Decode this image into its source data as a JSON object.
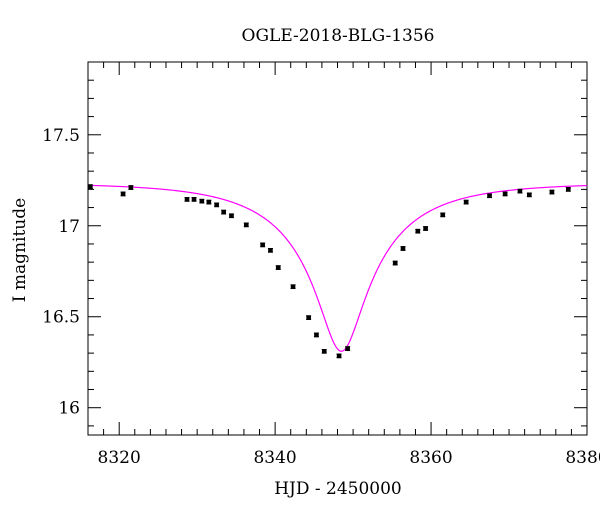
{
  "chart_data": {
    "type": "scatter",
    "title": "OGLE-2018-BLG-1356",
    "xlabel": "HJD - 2450000",
    "ylabel": "I magnitude",
    "xlim": [
      8316,
      8380
    ],
    "ylim": [
      17.9,
      15.85
    ],
    "y_inverted": true,
    "x_ticks": [
      8320,
      8340,
      8360,
      8380
    ],
    "x_tick_labels": [
      "8320",
      "8340",
      "8360",
      "8380"
    ],
    "y_ticks": [
      16,
      16.5,
      17,
      17.5
    ],
    "y_tick_labels": [
      "16",
      "16.5",
      "17",
      "17.5"
    ],
    "grid": false,
    "colors": {
      "points": "#000000",
      "model": "#ff00ff"
    },
    "series": [
      {
        "type": "scatter",
        "points": [
          [
            8316.3,
            17.215
          ],
          [
            8320.5,
            17.175
          ],
          [
            8321.5,
            17.21
          ],
          [
            8328.7,
            17.145
          ],
          [
            8329.6,
            17.145
          ],
          [
            8330.6,
            17.135
          ],
          [
            8331.5,
            17.13
          ],
          [
            8332.5,
            17.115
          ],
          [
            8333.4,
            17.075
          ],
          [
            8334.4,
            17.055
          ],
          [
            8336.3,
            17.005
          ],
          [
            8338.4,
            16.895
          ],
          [
            8339.4,
            16.865
          ],
          [
            8340.4,
            16.77
          ],
          [
            8342.3,
            16.665
          ],
          [
            8344.3,
            16.495
          ],
          [
            8345.3,
            16.4
          ],
          [
            8346.3,
            16.31
          ],
          [
            8348.2,
            16.285
          ],
          [
            8349.3,
            16.325
          ],
          [
            8355.4,
            16.795
          ],
          [
            8356.4,
            16.875
          ],
          [
            8358.3,
            16.97
          ],
          [
            8359.3,
            16.985
          ],
          [
            8361.5,
            17.06
          ],
          [
            8364.5,
            17.13
          ],
          [
            8367.5,
            17.165
          ],
          [
            8369.5,
            17.175
          ],
          [
            8371.4,
            17.19
          ],
          [
            8372.6,
            17.17
          ],
          [
            8375.5,
            17.185
          ],
          [
            8377.6,
            17.2
          ]
        ],
        "errors": [
          0.01,
          0.01,
          0.01,
          0.01,
          0.01,
          0.01,
          0.01,
          0.01,
          0.01,
          0.01,
          0.01,
          0.01,
          0.01,
          0.01,
          0.01,
          0.01,
          0.01,
          0.01,
          0.01,
          0.01,
          0.01,
          0.01,
          0.01,
          0.01,
          0.01,
          0.01,
          0.01,
          0.01,
          0.01,
          0.01,
          0.01,
          0.01
        ]
      },
      {
        "type": "line",
        "model": {
          "kind": "paczynski",
          "t0": 8348.5,
          "u0": 0.19,
          "tE": 14.0,
          "baseline_mag": 17.235,
          "blend_fraction": 0.31
        }
      }
    ]
  }
}
